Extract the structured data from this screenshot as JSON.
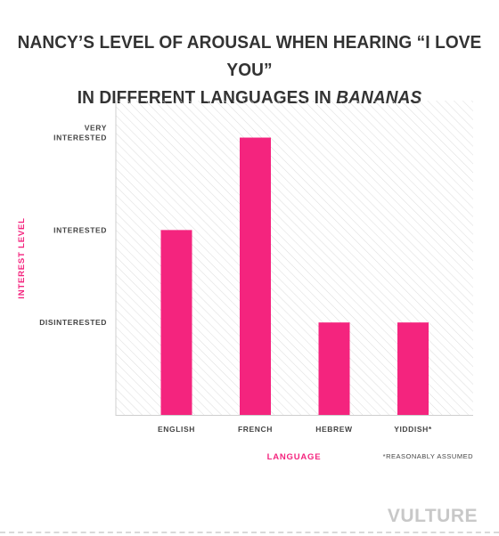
{
  "title": {
    "line1": "NANCY’S LEVEL OF AROUSAL WHEN HEARING “I LOVE YOU”",
    "line2_prefix": "IN DIFFERENT LANGUAGES IN ",
    "line2_emphasis": "BANANAS"
  },
  "chart_data": {
    "type": "bar",
    "categories": [
      "ENGLISH",
      "FRENCH",
      "HEBREW",
      "YIDDISH*"
    ],
    "values": [
      2,
      3,
      1,
      1
    ],
    "y_levels": [
      {
        "value": 1,
        "label": [
          "DISINTERESTED"
        ]
      },
      {
        "value": 2,
        "label": [
          "INTERESTED"
        ]
      },
      {
        "value": 3,
        "label": [
          "VERY",
          "INTERESTED"
        ]
      }
    ],
    "ylim": [
      0,
      3.4
    ],
    "xlabel": "LANGUAGE",
    "ylabel": "INTEREST LEVEL",
    "grid": false,
    "bar_color": "#f4247e",
    "background": "diagonal-hatch"
  },
  "footnote": "*REASONABLY ASSUMED",
  "logo": "VULTURE"
}
